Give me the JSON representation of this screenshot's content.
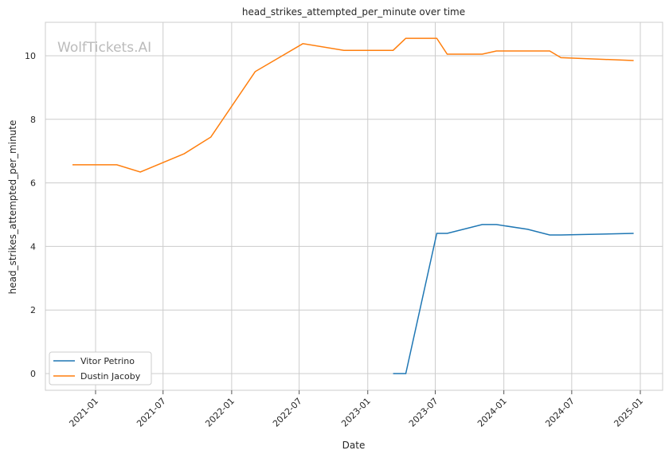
{
  "chart_data": {
    "type": "line",
    "title": "head_strikes_attempted_per_minute over time",
    "xlabel": "Date",
    "ylabel": "head_strikes_attempted_per_minute",
    "watermark": "WolfTickets.AI",
    "ylim": [
      -0.55,
      11.05
    ],
    "xlim": [
      "2020-08-20",
      "2025-02-05"
    ],
    "yticks": [
      0,
      2,
      4,
      6,
      8,
      10
    ],
    "xticks": [
      "2021-01",
      "2021-07",
      "2022-01",
      "2022-07",
      "2023-01",
      "2023-07",
      "2024-01",
      "2024-07",
      "2025-01"
    ],
    "grid": true,
    "legend_position": "bottom-left",
    "series": [
      {
        "name": "Vitor Petrino",
        "color": "#1f77b4",
        "x": [
          "2023-03-10",
          "2023-04-13",
          "2023-07-05",
          "2023-08-02",
          "2023-11-04",
          "2023-12-12",
          "2024-03-05",
          "2024-05-03",
          "2024-06-02",
          "2024-12-14"
        ],
        "y": [
          0,
          0,
          4.41,
          4.41,
          4.69,
          4.69,
          4.54,
          4.36,
          4.36,
          4.41
        ]
      },
      {
        "name": "Dustin Jacoby",
        "color": "#ff7f0e",
        "x": [
          "2020-10-31",
          "2021-02-27",
          "2021-05-01",
          "2021-08-27",
          "2021-11-06",
          "2022-03-05",
          "2022-07-11",
          "2022-10-29",
          "2023-03-10",
          "2023-04-13",
          "2023-07-05",
          "2023-08-02",
          "2023-11-04",
          "2023-12-12",
          "2024-05-03",
          "2024-06-02",
          "2024-12-14"
        ],
        "y": [
          6.57,
          6.57,
          6.34,
          6.92,
          7.44,
          9.5,
          10.38,
          10.17,
          10.17,
          10.55,
          10.55,
          10.05,
          10.05,
          10.15,
          10.15,
          9.94,
          9.85
        ]
      }
    ]
  }
}
